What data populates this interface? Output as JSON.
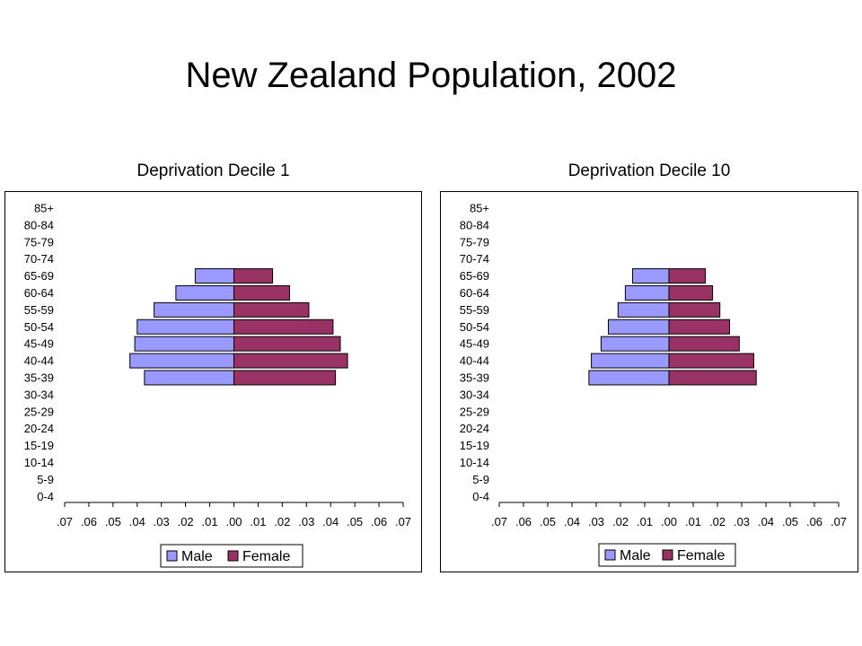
{
  "title": "New Zealand Population, 2002",
  "colors": {
    "male": "#9999ff",
    "female": "#993366",
    "border": "#000000"
  },
  "chart_data": [
    {
      "type": "bar",
      "orientation": "horizontal",
      "title": "Deprivation Decile 1",
      "categories": [
        "85+",
        "80-84",
        "75-79",
        "70-74",
        "65-69",
        "60-64",
        "55-59",
        "50-54",
        "45-49",
        "40-44",
        "35-39",
        "30-34",
        "25-29",
        "20-24",
        "15-19",
        "10-14",
        "5-9",
        "0-4"
      ],
      "series": [
        {
          "name": "Male",
          "values": [
            0,
            0,
            0,
            0,
            0.016,
            0.024,
            0.033,
            0.04,
            0.041,
            0.043,
            0.037,
            0,
            0,
            0,
            0,
            0,
            0,
            0
          ]
        },
        {
          "name": "Female",
          "values": [
            0,
            0,
            0,
            0,
            0.016,
            0.023,
            0.031,
            0.041,
            0.044,
            0.047,
            0.042,
            0,
            0,
            0,
            0,
            0,
            0,
            0
          ]
        }
      ],
      "x_tick_labels": [
        ".07",
        ".06",
        ".05",
        ".04",
        ".03",
        ".02",
        ".01",
        ".00",
        ".01",
        ".02",
        ".03",
        ".04",
        ".05",
        ".06",
        ".07"
      ],
      "xlim": [
        -0.07,
        0.07
      ],
      "legend": [
        "Male",
        "Female"
      ],
      "legend_position": "bottom"
    },
    {
      "type": "bar",
      "orientation": "horizontal",
      "title": "Deprivation Decile 10",
      "categories": [
        "85+",
        "80-84",
        "75-79",
        "70-74",
        "65-69",
        "60-64",
        "55-59",
        "50-54",
        "45-49",
        "40-44",
        "35-39",
        "30-34",
        "25-29",
        "20-24",
        "15-19",
        "10-14",
        "5-9",
        "0-4"
      ],
      "series": [
        {
          "name": "Male",
          "values": [
            0,
            0,
            0,
            0,
            0.015,
            0.018,
            0.021,
            0.025,
            0.028,
            0.032,
            0.033,
            0,
            0,
            0,
            0,
            0,
            0,
            0
          ]
        },
        {
          "name": "Female",
          "values": [
            0,
            0,
            0,
            0,
            0.015,
            0.018,
            0.021,
            0.025,
            0.029,
            0.035,
            0.036,
            0,
            0,
            0,
            0,
            0,
            0,
            0
          ]
        }
      ],
      "x_tick_labels": [
        ".07",
        ".06",
        ".05",
        ".04",
        ".03",
        ".02",
        ".01",
        ".00",
        ".01",
        ".02",
        ".03",
        ".04",
        ".05",
        ".06",
        ".07"
      ],
      "xlim": [
        -0.07,
        0.07
      ],
      "legend": [
        "Male",
        "Female"
      ],
      "legend_position": "bottom"
    }
  ]
}
